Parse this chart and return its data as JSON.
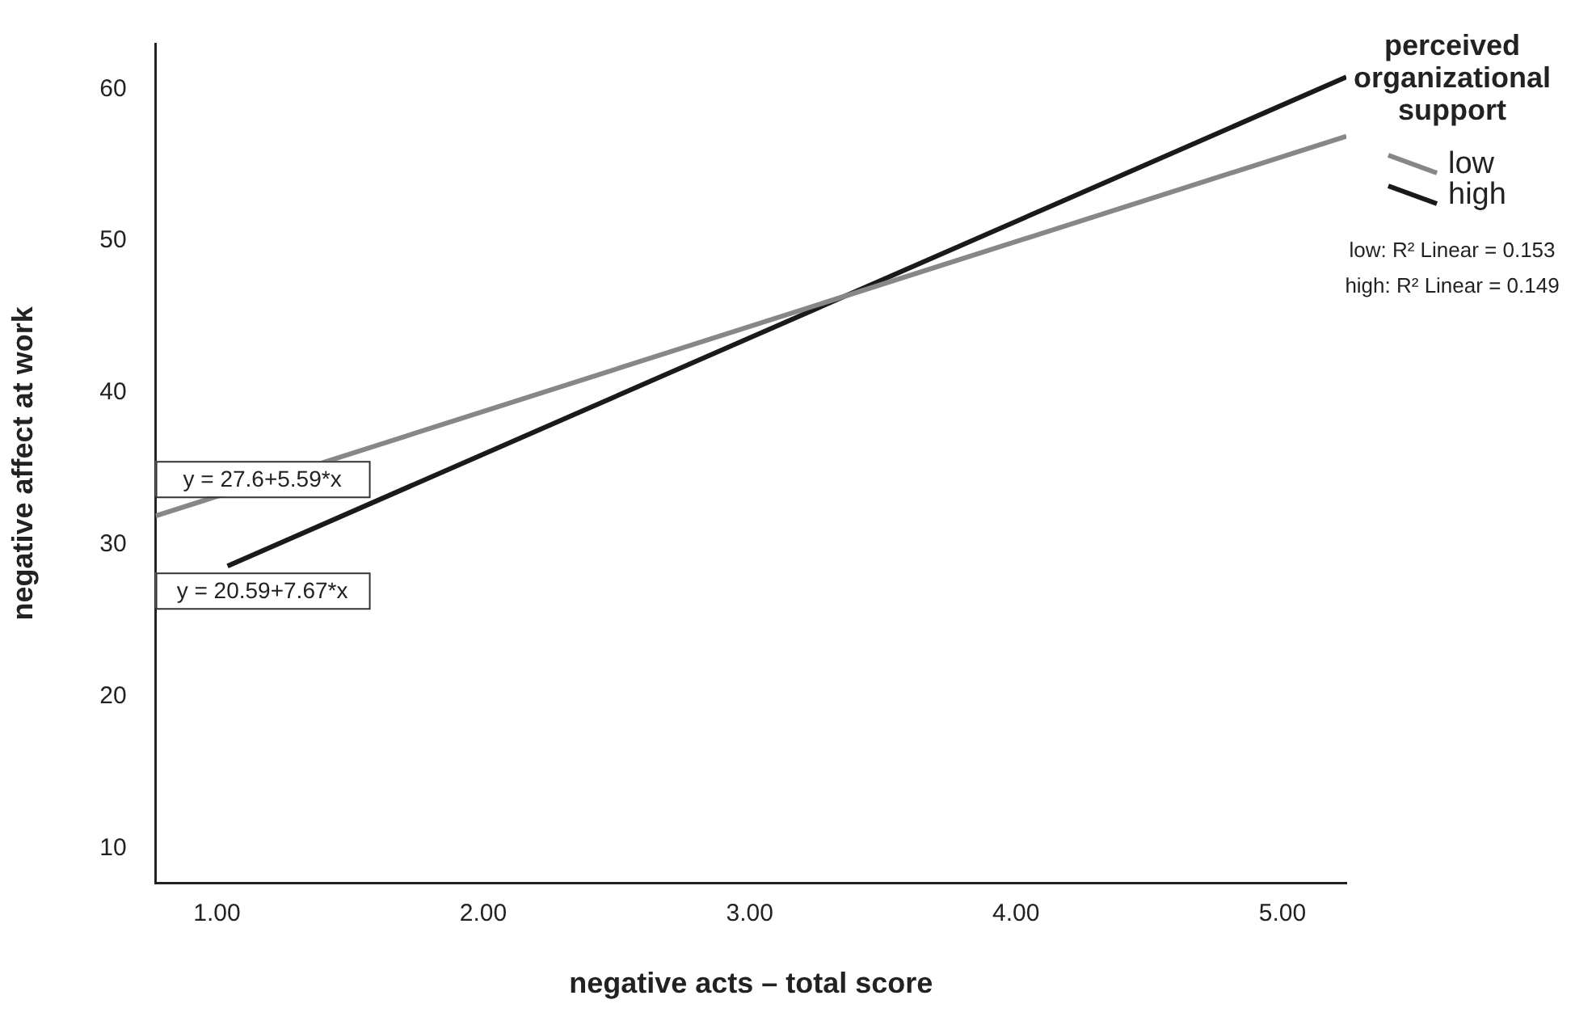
{
  "chart_data": {
    "type": "line",
    "xlabel": "negative acts – total score",
    "ylabel": "negative affect at work",
    "legend_title": "perceived organizational support",
    "legend": "top right",
    "marker": "none",
    "grid": false,
    "xlim": [
      0.77,
      5.24
    ],
    "xticks": [
      {
        "value": 1,
        "label": "1.00"
      },
      {
        "value": 2,
        "label": "2.00"
      },
      {
        "value": 3,
        "label": "3.00"
      },
      {
        "value": 4,
        "label": "4.00"
      },
      {
        "value": 5,
        "label": "5.00"
      }
    ],
    "ylim": [
      7.7,
      63
    ],
    "yticks": [
      10,
      20,
      30,
      40,
      50,
      60
    ],
    "series": [
      {
        "name": "low",
        "color": "#878787",
        "x": [
          0.77,
          5.24
        ],
        "values": [
          31.9,
          56.9
        ]
      },
      {
        "name": "high",
        "color": "#1a1a1a",
        "x": [
          1.04,
          5.24
        ],
        "values": [
          28.6,
          60.8
        ]
      }
    ],
    "annotations": [
      "y = 27.6+5.59*x",
      "y = 20.59+7.67*x",
      "low: R² Linear = 0.153",
      "high: R² Linear = 0.149"
    ]
  }
}
